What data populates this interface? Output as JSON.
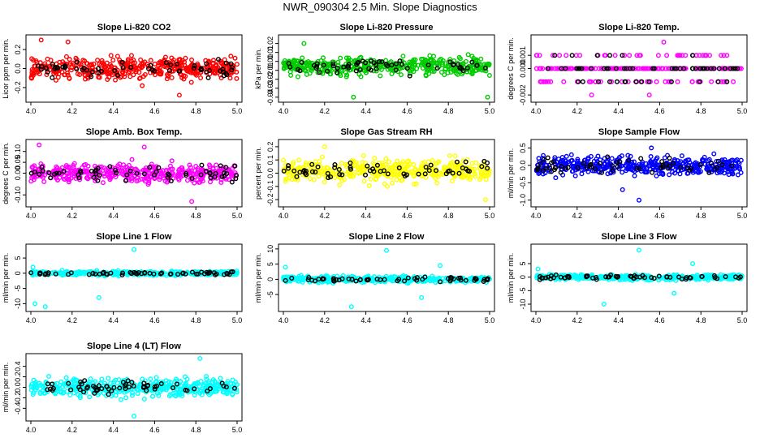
{
  "figure": {
    "title": "NWR_090304  2.5 Min. Slope Diagnostics"
  },
  "chart_data": [
    {
      "type": "scatter",
      "title": "Slope Li-820 CO2",
      "ylabel": "Licor ppm per min.",
      "color": "#ff0000",
      "xlim": [
        4.0,
        5.0
      ],
      "xticks": [
        "4.0",
        "4.2",
        "4.4",
        "4.6",
        "4.8",
        "5.0"
      ],
      "xticks_v": [
        4.0,
        4.2,
        4.4,
        4.6,
        4.8,
        5.0
      ],
      "ylim": [
        -0.32,
        0.32
      ],
      "yticks": [
        "-0.2",
        "0.0",
        "0.2"
      ],
      "yticks_v": [
        -0.2,
        0.0,
        0.2
      ],
      "n": 420,
      "center": 0.0,
      "spread": 0.1,
      "black_n": 60,
      "outliers": [
        [
          4.05,
          0.3
        ],
        [
          4.18,
          0.28
        ],
        [
          4.72,
          -0.28
        ]
      ]
    },
    {
      "type": "scatter",
      "title": "Slope Li-820 Pressure",
      "ylabel": "kPa per min.",
      "color": "#00cc00",
      "xlim": [
        4.0,
        5.0
      ],
      "xticks": [
        "4.0",
        "4.2",
        "4.4",
        "4.6",
        "4.8",
        "5.0"
      ],
      "xticks_v": [
        4.0,
        4.2,
        4.4,
        4.6,
        4.8,
        5.0
      ],
      "ylim": [
        -0.042,
        0.026
      ],
      "yticks": [
        "-0.04",
        "-0.03",
        "-0.02",
        "-0.01",
        "0.00",
        "0.01",
        "0.02"
      ],
      "yticks_v": [
        -0.04,
        -0.03,
        -0.02,
        -0.01,
        0.0,
        0.01,
        0.02
      ],
      "n": 420,
      "center": -0.005,
      "spread": 0.008,
      "black_n": 60,
      "outliers": [
        [
          4.34,
          -0.04
        ],
        [
          4.99,
          -0.04
        ],
        [
          4.1,
          0.02
        ]
      ]
    },
    {
      "type": "scatter",
      "title": "Slope Li-820 Temp.",
      "ylabel": "degrees C per min.",
      "color": "#ff00ff",
      "xlim": [
        4.0,
        5.0
      ],
      "xticks": [
        "4.0",
        "4.2",
        "4.4",
        "4.6",
        "4.8",
        "5.0"
      ],
      "xticks_v": [
        4.0,
        4.2,
        4.4,
        4.6,
        4.8,
        5.0
      ],
      "ylim": [
        -0.0023,
        0.0023
      ],
      "yticks": [
        "-0.002",
        "0.000",
        "0.001"
      ],
      "yticks_v": [
        -0.002,
        0.0,
        0.001
      ],
      "n": 260,
      "center": 0.0,
      "spread": 0.0,
      "levels": [
        -0.001,
        0.0,
        0.001
      ],
      "black_n": 60,
      "outliers": [
        [
          4.62,
          0.002
        ],
        [
          4.55,
          -0.002
        ],
        [
          4.27,
          -0.002
        ]
      ]
    },
    {
      "type": "scatter",
      "title": "Slope Amb. Box Temp.",
      "ylabel": "degrees C per min.",
      "color": "#ff00ff",
      "xlim": [
        4.0,
        5.0
      ],
      "xticks": [
        "4.0",
        "4.2",
        "4.4",
        "4.6",
        "4.8",
        "5.0"
      ],
      "xticks_v": [
        4.0,
        4.2,
        4.4,
        4.6,
        4.8,
        5.0
      ],
      "ylim": [
        -0.14,
        0.14
      ],
      "yticks": [
        "-0.10",
        "0.00",
        "0.05",
        "0.10"
      ],
      "yticks_v": [
        -0.1,
        0.0,
        0.05,
        0.1
      ],
      "n": 420,
      "center": 0.0,
      "spread": 0.035,
      "black_n": 60,
      "outliers": [
        [
          4.04,
          0.13
        ],
        [
          4.78,
          -0.13
        ],
        [
          4.55,
          0.12
        ]
      ]
    },
    {
      "type": "scatter",
      "title": "Slope Gas Stream RH",
      "ylabel": "percent per min.",
      "color": "#ffff00",
      "xlim": [
        4.0,
        5.0
      ],
      "xticks": [
        "4.0",
        "4.2",
        "4.4",
        "4.6",
        "4.8",
        "5.0"
      ],
      "xticks_v": [
        4.0,
        4.2,
        4.4,
        4.6,
        4.8,
        5.0
      ],
      "ylim": [
        -0.23,
        0.23
      ],
      "yticks": [
        "-0.2",
        "-0.1",
        "0.0",
        "0.1",
        "0.2"
      ],
      "yticks_v": [
        -0.2,
        -0.1,
        0.0,
        0.1,
        0.2
      ],
      "n": 420,
      "center": 0.02,
      "spread": 0.07,
      "black_n": 60,
      "outliers": [
        [
          4.2,
          0.2
        ],
        [
          4.98,
          -0.2
        ]
      ]
    },
    {
      "type": "scatter",
      "title": "Slope Sample Flow",
      "ylabel": "ml/min per min.",
      "color": "#0000ff",
      "xlim": [
        4.0,
        5.0
      ],
      "xticks": [
        "4.0",
        "4.2",
        "4.4",
        "4.6",
        "4.8",
        "5.0"
      ],
      "xticks_v": [
        4.0,
        4.2,
        4.4,
        4.6,
        4.8,
        5.0
      ],
      "ylim": [
        -1.1,
        0.65
      ],
      "yticks": [
        "-1.0",
        "-0.5",
        "0.0",
        "0.5"
      ],
      "yticks_v": [
        -1.0,
        -0.5,
        0.0,
        0.5
      ],
      "n": 420,
      "center": 0.0,
      "spread": 0.22,
      "black_n": 60,
      "outliers": [
        [
          4.5,
          -1.0
        ],
        [
          4.56,
          0.5
        ],
        [
          4.42,
          -0.7
        ]
      ]
    },
    {
      "type": "scatter",
      "title": "Slope Line 1 Flow",
      "ylabel": "ml/min per min.",
      "color": "#00ffff",
      "xlim": [
        4.0,
        5.0
      ],
      "xticks": [
        "4.0",
        "4.2",
        "4.4",
        "4.6",
        "4.8",
        "5.0"
      ],
      "xticks_v": [
        4.0,
        4.2,
        4.4,
        4.6,
        4.8,
        5.0
      ],
      "ylim": [
        -11.5,
        8.5
      ],
      "yticks": [
        "-10",
        "-5",
        "0",
        "5"
      ],
      "yticks_v": [
        -10,
        -5,
        0,
        5
      ],
      "n": 420,
      "center": 0.0,
      "spread": 0.6,
      "black_n": 60,
      "outliers": [
        [
          4.02,
          -10
        ],
        [
          4.07,
          -11
        ],
        [
          4.33,
          -8
        ],
        [
          4.5,
          7.8
        ],
        [
          4.01,
          2
        ]
      ]
    },
    {
      "type": "scatter",
      "title": "Slope Line 2 Flow",
      "ylabel": "ml/min per min.",
      "color": "#00ffff",
      "xlim": [
        4.0,
        5.0
      ],
      "xticks": [
        "4.0",
        "4.2",
        "4.4",
        "4.6",
        "4.8",
        "5.0"
      ],
      "xticks_v": [
        4.0,
        4.2,
        4.4,
        4.6,
        4.8,
        5.0
      ],
      "ylim": [
        -9.5,
        10.5
      ],
      "yticks": [
        "-5",
        "0",
        "5",
        "10"
      ],
      "yticks_v": [
        -5,
        0,
        5,
        10
      ],
      "n": 420,
      "center": 0.0,
      "spread": 0.8,
      "black_n": 60,
      "outliers": [
        [
          4.33,
          -9
        ],
        [
          4.5,
          9.5
        ],
        [
          4.67,
          -6
        ],
        [
          4.76,
          4.5
        ],
        [
          4.01,
          4
        ]
      ]
    },
    {
      "type": "scatter",
      "title": "Slope Line 3 Flow",
      "ylabel": "ml/min per min.",
      "color": "#00ffff",
      "xlim": [
        4.0,
        5.0
      ],
      "xticks": [
        "4.0",
        "4.2",
        "4.4",
        "4.6",
        "4.8",
        "5.0"
      ],
      "xticks_v": [
        4.0,
        4.2,
        4.4,
        4.6,
        4.8,
        5.0
      ],
      "ylim": [
        -11.5,
        11
      ],
      "yticks": [
        "-10",
        "-5",
        "0",
        "5"
      ],
      "yticks_v": [
        -10,
        -5,
        0,
        5
      ],
      "n": 420,
      "center": 0.0,
      "spread": 0.8,
      "black_n": 60,
      "outliers": [
        [
          4.33,
          -10
        ],
        [
          4.5,
          10
        ],
        [
          4.67,
          -6
        ],
        [
          4.76,
          5
        ],
        [
          4.01,
          3
        ]
      ]
    },
    {
      "type": "scatter",
      "title": "Slope Line 4 (LT) Flow",
      "ylabel": "ml/min per min.",
      "color": "#00ffff",
      "xlim": [
        4.0,
        5.0
      ],
      "xticks": [
        "4.0",
        "4.2",
        "4.4",
        "4.6",
        "4.8",
        "5.0"
      ],
      "xticks_v": [
        4.0,
        4.2,
        4.4,
        4.6,
        4.8,
        5.0
      ],
      "ylim": [
        -0.58,
        0.58
      ],
      "yticks": [
        "-0.4",
        "-0.2",
        "0.0",
        "0.2",
        "0.4"
      ],
      "yticks_v": [
        -0.4,
        -0.2,
        0.0,
        0.2,
        0.4
      ],
      "n": 420,
      "center": 0.0,
      "spread": 0.14,
      "black_n": 60,
      "outliers": [
        [
          4.5,
          -0.55
        ],
        [
          4.82,
          0.55
        ]
      ]
    }
  ]
}
